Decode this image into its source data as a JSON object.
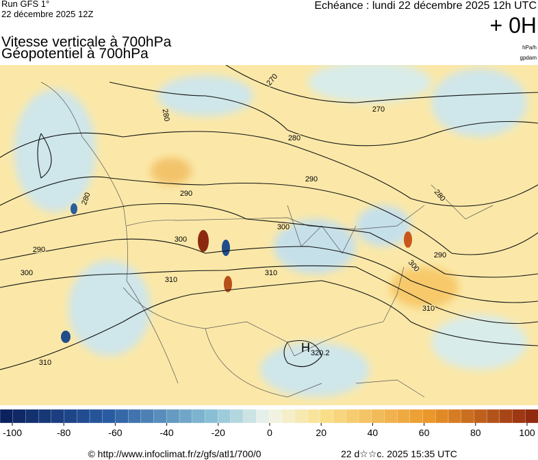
{
  "header": {
    "run": "Run GFS 1°",
    "run_date": "22 décembre 2025 12Z",
    "valid": "Echéance : lundi 22 décembre 2025 12h UTC",
    "lead": "+ 0H",
    "title_1": "Vitesse verticale à 700hPa",
    "title_2": "Géopotentiel à 700hPa",
    "unit_1": "hPa/h",
    "unit_2": "gpdam"
  },
  "map": {
    "contour_labels": [
      "270",
      "270",
      "280",
      "280",
      "280",
      "280",
      "290",
      "290",
      "290",
      "290",
      "300",
      "300",
      "300",
      "300",
      "310",
      "310",
      "310",
      "310"
    ],
    "high": {
      "label": "H",
      "value": "320.2"
    }
  },
  "colorbar": {
    "ticks": [
      -100,
      -80,
      -60,
      -40,
      -20,
      0,
      20,
      40,
      60,
      80,
      100
    ]
  },
  "footer": {
    "credit": "© http://www.infoclimat.fr/z/gfs/atl1/700/0",
    "timestamp": "22 d☆☆c. 2025 15:35 UTC"
  }
}
